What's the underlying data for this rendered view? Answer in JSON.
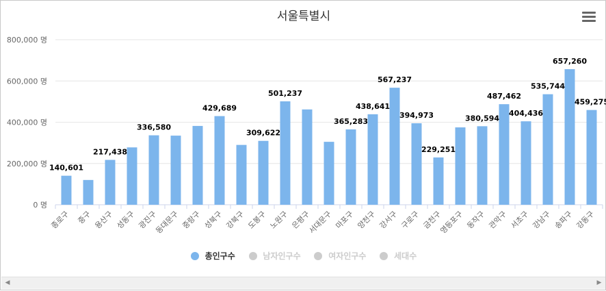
{
  "chart_data": {
    "type": "bar",
    "title": "서울특별시",
    "y_tick_labels": [
      "0 명",
      "200,000 명",
      "400,000 명",
      "600,000 명",
      "800,000 명"
    ],
    "y_ticks": [
      0,
      200000,
      400000,
      600000,
      800000
    ],
    "ylim": [
      0,
      800000
    ],
    "categories": [
      "종로구",
      "중구",
      "용산구",
      "성동구",
      "광진구",
      "동대문구",
      "중랑구",
      "성북구",
      "강북구",
      "도봉구",
      "노원구",
      "은평구",
      "서대문구",
      "마포구",
      "양천구",
      "강서구",
      "구로구",
      "금천구",
      "영등포구",
      "동작구",
      "관악구",
      "서초구",
      "강남구",
      "송파구",
      "강동구"
    ],
    "series": [
      {
        "name": "총인구수",
        "color": "#7cb5ec",
        "values": [
          140601,
          120000,
          217438,
          278000,
          336580,
          335000,
          382000,
          429689,
          290000,
          309622,
          501237,
          462000,
          305000,
          365283,
          438641,
          567237,
          394973,
          229251,
          375000,
          380594,
          487462,
          404436,
          535744,
          657260,
          459275
        ],
        "data_labels": [
          "140,601",
          "",
          "217,438",
          "",
          "336,580",
          "",
          "",
          "429,689",
          "",
          "309,622",
          "501,237",
          "",
          "",
          "365,283",
          "438,641",
          "567,237",
          "394,973",
          "229,251",
          "",
          "380,594",
          "487,462",
          "404,436",
          "535,744",
          "657,260",
          "459,275"
        ]
      }
    ],
    "legend": [
      {
        "name": "총인구수",
        "active": true,
        "color": "#7cb5ec"
      },
      {
        "name": "남자인구수",
        "active": false,
        "color": "#cccccc"
      },
      {
        "name": "여자인구수",
        "active": false,
        "color": "#cccccc"
      },
      {
        "name": "세대수",
        "active": false,
        "color": "#cccccc"
      }
    ]
  },
  "scrollbar": {
    "left_arrow": "◀",
    "right_arrow": "▶"
  }
}
